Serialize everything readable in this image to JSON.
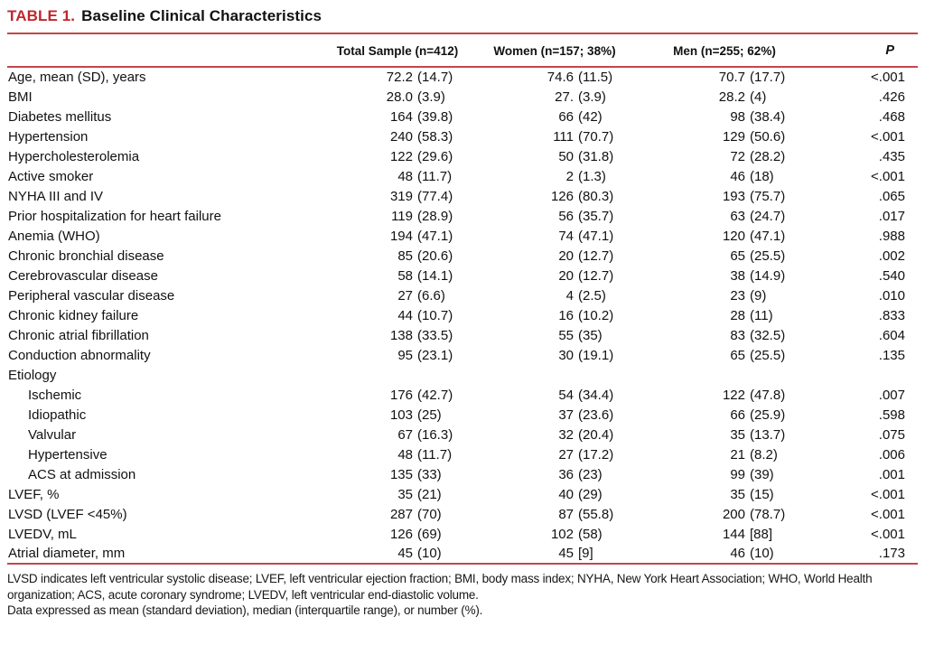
{
  "title": {
    "label": "TABLE 1.",
    "text": "Baseline Clinical Characteristics"
  },
  "accent_colors": {
    "title_red": "#c0272d",
    "rule_red": "#c4464b"
  },
  "table": {
    "columns": {
      "label": "",
      "total": "Total Sample (n=412)",
      "women": "Women (n=157; 38%)",
      "men": "Men (n=255; 62%)",
      "p": "P"
    },
    "rows": [
      {
        "label": "Age, mean (SD), years",
        "indent": false,
        "total": "72.2 (14.7)",
        "women": "74.6 (11.5)",
        "men": "70.7 (17.7)",
        "p": "<.001"
      },
      {
        "label": "BMI",
        "indent": false,
        "total": "28.0 (3.9)",
        "women": "27. (3.9)",
        "men": "28.2 (4)",
        "p": ".426"
      },
      {
        "label": "Diabetes mellitus",
        "indent": false,
        "total": "164 (39.8)",
        "women": "66 (42)",
        "men": "98 (38.4)",
        "p": ".468"
      },
      {
        "label": "Hypertension",
        "indent": false,
        "total": "240 (58.3)",
        "women": "111 (70.7)",
        "men": "129 (50.6)",
        "p": "<.001"
      },
      {
        "label": "Hypercholesterolemia",
        "indent": false,
        "total": "122 (29.6)",
        "women": "50 (31.8)",
        "men": "72 (28.2)",
        "p": ".435"
      },
      {
        "label": "Active smoker",
        "indent": false,
        "total": "48 (11.7)",
        "women": "2 (1.3)",
        "men": "46 (18)",
        "p": "<.001"
      },
      {
        "label": "NYHA III and IV",
        "indent": false,
        "total": "319 (77.4)",
        "women": "126 (80.3)",
        "men": "193 (75.7)",
        "p": ".065"
      },
      {
        "label": "Prior hospitalization for heart failure",
        "indent": false,
        "total": "119 (28.9)",
        "women": "56 (35.7)",
        "men": "63 (24.7)",
        "p": ".017"
      },
      {
        "label": "Anemia (WHO)",
        "indent": false,
        "total": "194 (47.1)",
        "women": "74 (47.1)",
        "men": "120 (47.1)",
        "p": ".988"
      },
      {
        "label": "Chronic bronchial disease",
        "indent": false,
        "total": "85 (20.6)",
        "women": "20 (12.7)",
        "men": "65 (25.5)",
        "p": ".002"
      },
      {
        "label": "Cerebrovascular disease",
        "indent": false,
        "total": "58 (14.1)",
        "women": "20 (12.7)",
        "men": "38 (14.9)",
        "p": ".540"
      },
      {
        "label": "Peripheral vascular disease",
        "indent": false,
        "total": "27 (6.6)",
        "women": "4 (2.5)",
        "men": "23 (9)",
        "p": ".010"
      },
      {
        "label": "Chronic kidney failure",
        "indent": false,
        "total": "44 (10.7)",
        "women": "16 (10.2)",
        "men": "28 (11)",
        "p": ".833"
      },
      {
        "label": "Chronic atrial fibrillation",
        "indent": false,
        "total": "138 (33.5)",
        "women": "55 (35)",
        "men": "83 (32.5)",
        "p": ".604"
      },
      {
        "label": "Conduction abnormality",
        "indent": false,
        "total": "95 (23.1)",
        "women": "30 (19.1)",
        "men": "65 (25.5)",
        "p": ".135"
      },
      {
        "label": "Etiology",
        "indent": false,
        "total": "",
        "women": "",
        "men": "",
        "p": ""
      },
      {
        "label": "Ischemic",
        "indent": true,
        "total": "176 (42.7)",
        "women": "54 (34.4)",
        "men": "122 (47.8)",
        "p": ".007"
      },
      {
        "label": "Idiopathic",
        "indent": true,
        "total": "103 (25)",
        "women": "37 (23.6)",
        "men": "66 (25.9)",
        "p": ".598"
      },
      {
        "label": "Valvular",
        "indent": true,
        "total": "67 (16.3)",
        "women": "32 (20.4)",
        "men": "35 (13.7)",
        "p": ".075"
      },
      {
        "label": "Hypertensive",
        "indent": true,
        "total": "48 (11.7)",
        "women": "27 (17.2)",
        "men": "21 (8.2)",
        "p": ".006"
      },
      {
        "label": "ACS at admission",
        "indent": true,
        "total": "135 (33)",
        "women": "36 (23)",
        "men": "99 (39)",
        "p": ".001"
      },
      {
        "label": "LVEF, %",
        "indent": false,
        "total": "35 (21)",
        "women": "40 (29)",
        "men": "35 (15)",
        "p": "<.001"
      },
      {
        "label": "LVSD (LVEF <45%)",
        "indent": false,
        "total": "287 (70)",
        "women": "87 (55.8)",
        "men": "200 (78.7)",
        "p": "<.001"
      },
      {
        "label": "LVEDV, mL",
        "indent": false,
        "total": "126 (69)",
        "women": "102 (58)",
        "men": "144 [88]",
        "p": "<.001"
      },
      {
        "label": "Atrial diameter, mm",
        "indent": false,
        "total": "45 (10)",
        "women": "45 [9]",
        "men": "46 (10)",
        "p": ".173"
      }
    ]
  },
  "footnote": {
    "abbreviations": "LVSD indicates left ventricular systolic disease; LVEF, left ventricular ejection fraction; BMI, body mass index; NYHA, New York Heart Association; WHO, World Health organization; ACS, acute coronary syndrome; LVEDV, left ventricular end-diastolic volume.",
    "data_note": "Data expressed as mean (standard deviation), median (interquartile range), or number (%)."
  }
}
